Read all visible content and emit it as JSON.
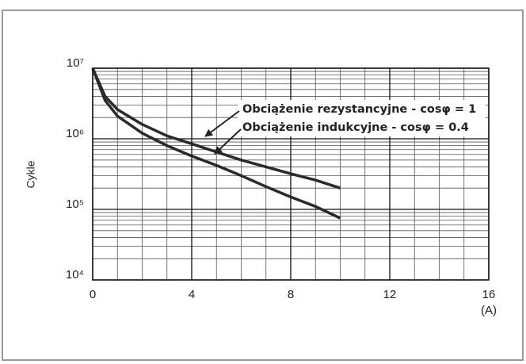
{
  "chart_data": {
    "type": "line",
    "y_label": "Cykle",
    "x_unit": "(A)",
    "x": [
      0,
      0.5,
      1,
      2,
      3,
      4,
      5,
      6,
      7,
      8,
      9,
      10
    ],
    "series": [
      {
        "name": "Obciążenie rezystancyjne - cosφ = 1",
        "color": "#2a2a2a",
        "values": [
          10000000,
          4000000,
          2600000,
          1600000,
          1100000,
          850000,
          650000,
          500000,
          400000,
          320000,
          260000,
          200000
        ]
      },
      {
        "name": "Obciążenie indukcyjne - cosφ = 0.4",
        "color": "#2a2a2a",
        "values": [
          10000000,
          3500000,
          2100000,
          1200000,
          800000,
          570000,
          420000,
          300000,
          210000,
          150000,
          110000,
          75000
        ]
      }
    ],
    "xlim": [
      0,
      16
    ],
    "xticks": [
      0,
      4,
      8,
      12,
      16
    ],
    "ylim": [
      10000,
      10000000
    ],
    "yticks": [
      {
        "value": 10000,
        "label": "10⁴"
      },
      {
        "value": 100000,
        "label": "10⁵"
      },
      {
        "value": 1000000,
        "label": "10⁶"
      },
      {
        "value": 10000000,
        "label": "10⁷"
      }
    ],
    "y_log": true,
    "grid": true,
    "minor_grid": true
  }
}
